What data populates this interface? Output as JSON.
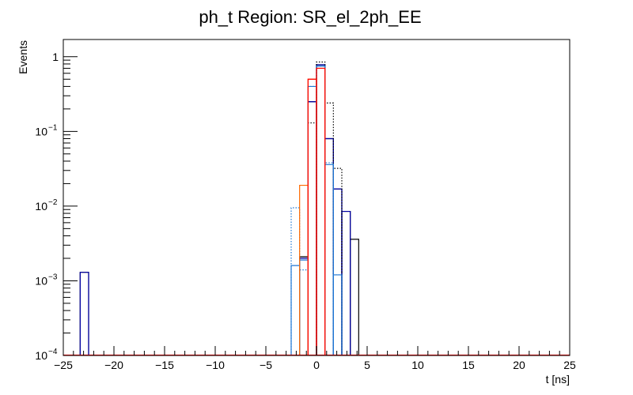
{
  "chart_data": {
    "type": "histogram",
    "title": "ph_t Region: SR_el_2ph_EE",
    "xlabel": "t [ns]",
    "ylabel": "Events",
    "xlim": [
      -25,
      25
    ],
    "ylim": [
      0.0001,
      1.7
    ],
    "yscale": "log",
    "grid": false,
    "x_ticks": [
      -25,
      -20,
      -15,
      -10,
      -5,
      0,
      5,
      10,
      15,
      20,
      25
    ],
    "x_tick_labels": [
      "−25",
      "−20",
      "−15",
      "−10",
      "−5",
      "0",
      "5",
      "10",
      "15",
      "20",
      "25"
    ],
    "y_ticks": [
      {
        "value": 1,
        "base": "1",
        "exp": ""
      },
      {
        "value": 0.1,
        "base": "10",
        "exp": "−1"
      },
      {
        "value": 0.01,
        "base": "10",
        "exp": "−2"
      },
      {
        "value": 0.001,
        "base": "10",
        "exp": "−3"
      },
      {
        "value": 0.0001,
        "base": "10",
        "exp": "−4"
      }
    ],
    "bin_edges": [
      -25,
      -24.167,
      -23.333,
      -22.5,
      -21.667,
      -20.833,
      -20,
      -19.167,
      -18.333,
      -17.5,
      -16.667,
      -15.833,
      -15,
      -14.167,
      -13.333,
      -12.5,
      -11.667,
      -10.833,
      -10,
      -9.167,
      -8.333,
      -7.5,
      -6.667,
      -5.833,
      -5,
      -4.167,
      -3.333,
      -2.5,
      -1.667,
      -0.833,
      0,
      0.833,
      1.667,
      2.5,
      3.333,
      4.167,
      5,
      5.833,
      6.667,
      7.5,
      8.333,
      9.167,
      10,
      10.833,
      11.667,
      12.5,
      13.333,
      14.167,
      15,
      15.833,
      16.667,
      17.5,
      18.333,
      19.167,
      20,
      20.833,
      21.667,
      22.5,
      23.333,
      24.167,
      25
    ],
    "series": [
      {
        "color": "#000000",
        "style": "solid",
        "bins": [
          {
            "x0": -23.333,
            "x1": -22.5,
            "y": 0.0013
          },
          {
            "x0": -1.667,
            "x1": -0.833,
            "y": 0.0021
          },
          {
            "x0": -0.833,
            "x1": 0,
            "y": 0.25
          },
          {
            "x0": 0,
            "x1": 0.833,
            "y": 0.78
          },
          {
            "x0": 0.833,
            "x1": 1.667,
            "y": 0.08
          },
          {
            "x0": 1.667,
            "x1": 2.5,
            "y": 0.017
          },
          {
            "x0": 2.5,
            "x1": 3.333,
            "y": 0.0085
          },
          {
            "x0": 3.333,
            "x1": 4.167,
            "y": 0.0036
          }
        ]
      },
      {
        "color": "#0000aa",
        "style": "solid",
        "bins": [
          {
            "x0": -23.333,
            "x1": -22.5,
            "y": 0.0013
          },
          {
            "x0": -1.667,
            "x1": -0.833,
            "y": 0.002
          },
          {
            "x0": -0.833,
            "x1": 0,
            "y": 0.25
          },
          {
            "x0": 0,
            "x1": 0.833,
            "y": 0.78
          },
          {
            "x0": 0.833,
            "x1": 1.667,
            "y": 0.08
          },
          {
            "x0": 1.667,
            "x1": 2.5,
            "y": 0.017
          },
          {
            "x0": 2.5,
            "x1": 3.333,
            "y": 0.0085
          }
        ]
      },
      {
        "color": "#000000",
        "style": "dotted",
        "bins": [
          {
            "x0": -0.833,
            "x1": 0,
            "y": 0.13
          },
          {
            "x0": 0,
            "x1": 0.833,
            "y": 0.85
          },
          {
            "x0": 0.833,
            "x1": 1.667,
            "y": 0.24
          },
          {
            "x0": 1.667,
            "x1": 2.5,
            "y": 0.032
          }
        ]
      },
      {
        "color": "#1f77d4",
        "style": "dotted",
        "bins": [
          {
            "x0": -2.5,
            "x1": -1.667,
            "y": 0.0095
          },
          {
            "x0": -1.667,
            "x1": -0.833,
            "y": 0.0014
          },
          {
            "x0": -0.833,
            "x1": 0,
            "y": 0.4
          },
          {
            "x0": 0,
            "x1": 0.833,
            "y": 0.75
          },
          {
            "x0": 0.833,
            "x1": 1.667,
            "y": 0.038
          },
          {
            "x0": 1.667,
            "x1": 2.5,
            "y": 0.0012
          }
        ]
      },
      {
        "color": "#1f77d4",
        "style": "solid",
        "bins": [
          {
            "x0": -2.5,
            "x1": -1.667,
            "y": 0.0016
          },
          {
            "x0": -1.667,
            "x1": -0.833,
            "y": 0.0019
          },
          {
            "x0": -0.833,
            "x1": 0,
            "y": 0.4
          },
          {
            "x0": 0,
            "x1": 0.833,
            "y": 0.75
          },
          {
            "x0": 0.833,
            "x1": 1.667,
            "y": 0.036
          },
          {
            "x0": 1.667,
            "x1": 2.5,
            "y": 0.0012
          }
        ]
      },
      {
        "color": "#ff6a00",
        "style": "solid",
        "bins": [
          {
            "x0": -1.667,
            "x1": -0.833,
            "y": 0.019
          },
          {
            "x0": -0.833,
            "x1": 0,
            "y": 0.5
          },
          {
            "x0": 0,
            "x1": 0.833,
            "y": 0.7
          }
        ]
      },
      {
        "color": "#ff0000",
        "style": "solid",
        "bins": [
          {
            "x0": -0.833,
            "x1": 0,
            "y": 0.5
          },
          {
            "x0": 0,
            "x1": 0.833,
            "y": 0.7
          }
        ]
      }
    ]
  }
}
